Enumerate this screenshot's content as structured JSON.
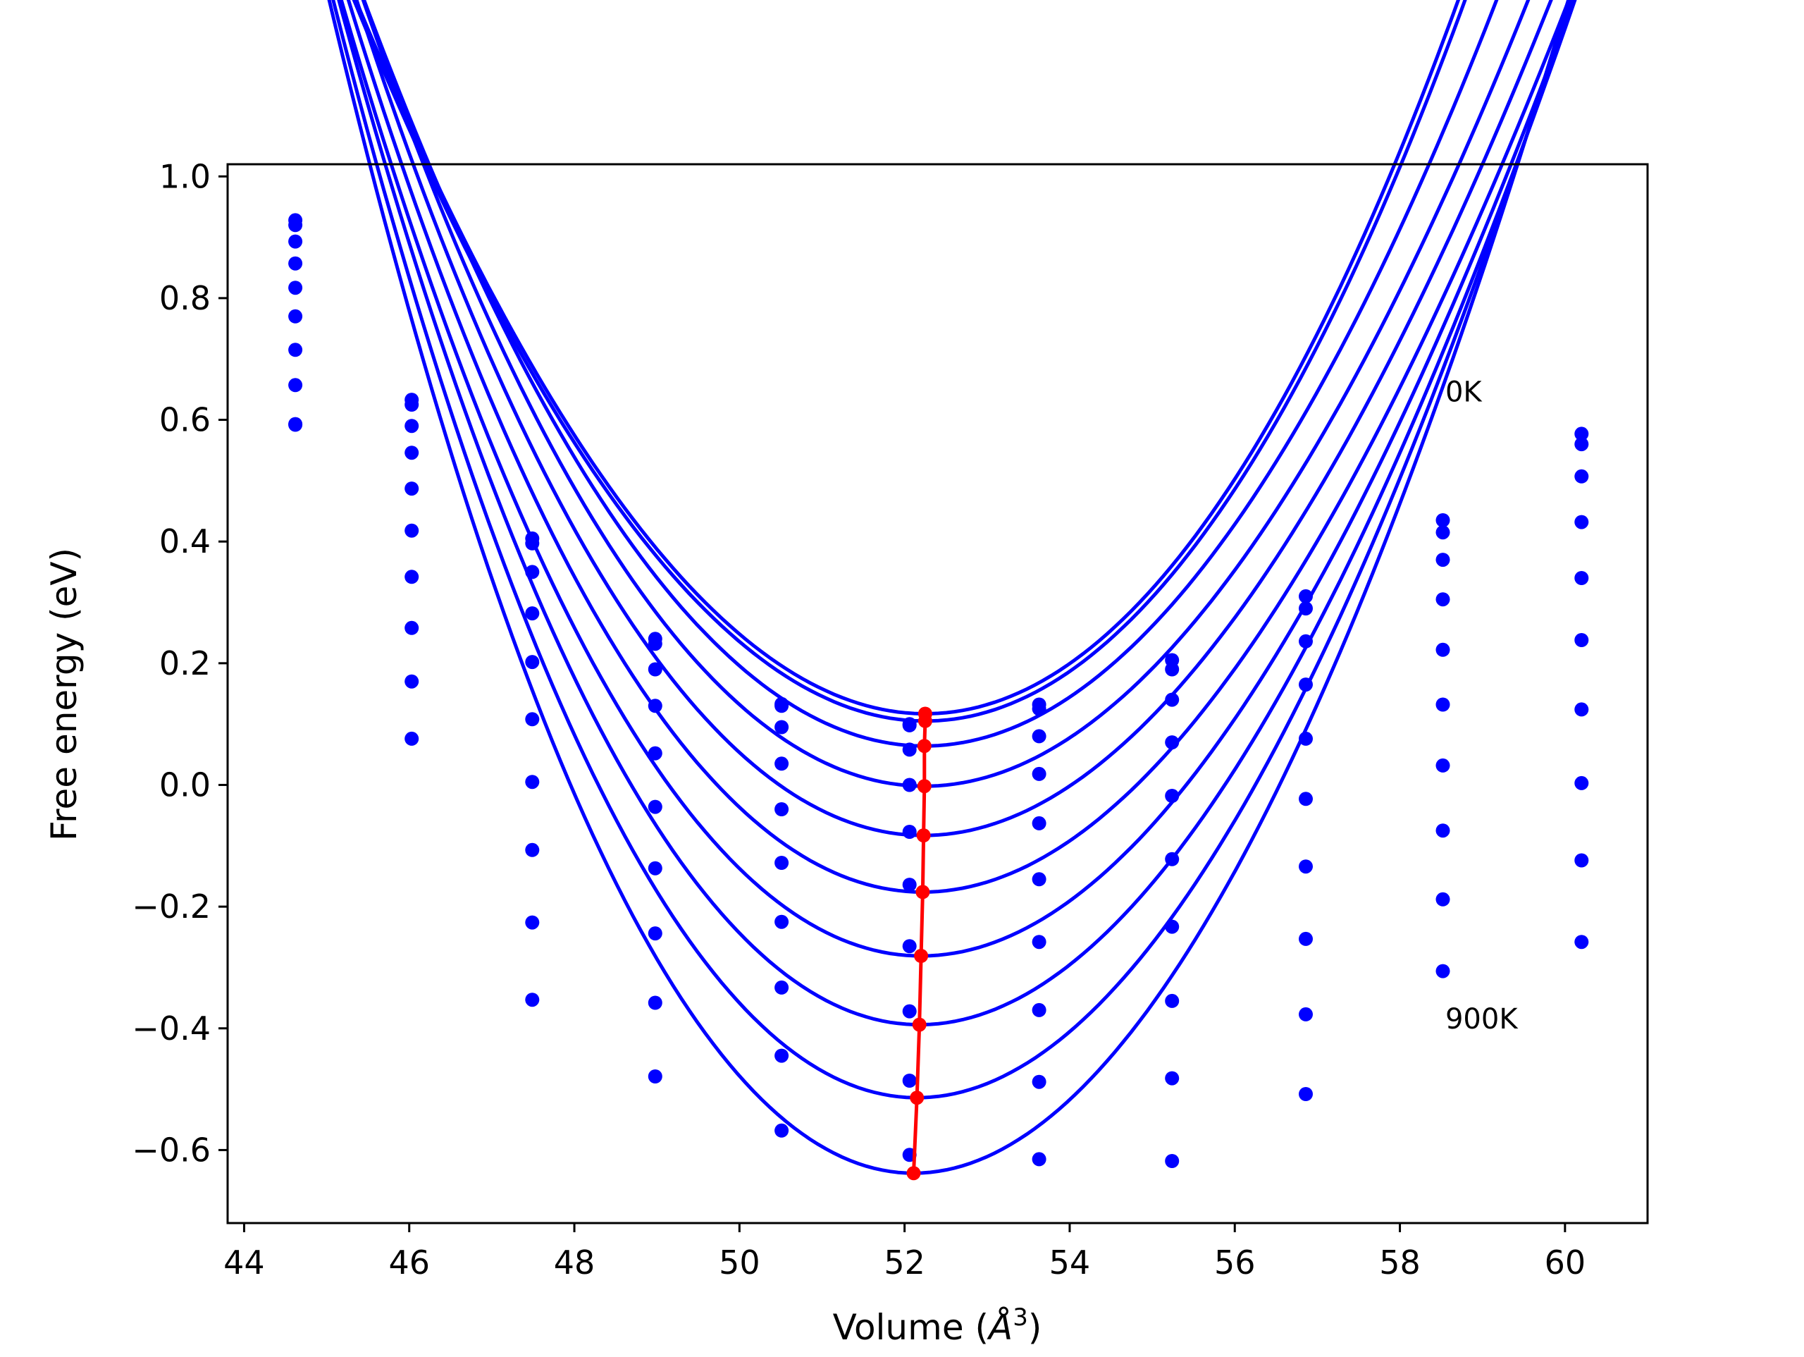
{
  "chart_data": {
    "type": "line",
    "title": "",
    "xlabel": "Volume",
    "xlabel_unit": "Å",
    "xlabel_exponent": "3",
    "ylabel": "Free energy (eV)",
    "xlim": [
      43.8,
      61.0
    ],
    "ylim": [
      -0.72,
      1.02
    ],
    "xticks": [
      44,
      46,
      48,
      50,
      52,
      54,
      56,
      58,
      60
    ],
    "xtick_labels": [
      "44",
      "46",
      "48",
      "50",
      "52",
      "54",
      "56",
      "58",
      "60"
    ],
    "yticks": [
      -0.6,
      -0.4,
      -0.2,
      0.0,
      0.2,
      0.4,
      0.6,
      0.8,
      1.0
    ],
    "ytick_labels": [
      "−0.6",
      "−0.4",
      "−0.2",
      "0.0",
      "0.2",
      "0.4",
      "0.6",
      "0.8",
      "1.0"
    ],
    "grid": false,
    "annotations": [
      {
        "text": "0K",
        "x": 58.55,
        "y": 0.63
      },
      {
        "text": "900K",
        "x": 58.55,
        "y": -0.4
      }
    ],
    "x": [
      44.62,
      46.03,
      47.49,
      48.98,
      50.51,
      52.06,
      53.63,
      55.24,
      56.86,
      58.52,
      60.2
    ],
    "series": [
      {
        "values": [
          0.928,
          0.633,
          0.405,
          0.24,
          0.133,
          0.1,
          0.132,
          0.205,
          0.31,
          0.435,
          0.577
        ]
      },
      {
        "values": [
          0.92,
          0.625,
          0.397,
          0.232,
          0.13,
          0.098,
          0.125,
          0.19,
          0.29,
          0.415,
          0.56
        ]
      },
      {
        "values": [
          0.893,
          0.59,
          0.35,
          0.19,
          0.095,
          0.058,
          0.08,
          0.14,
          0.236,
          0.37,
          0.507
        ]
      },
      {
        "values": [
          0.857,
          0.546,
          0.282,
          0.13,
          0.035,
          0.0,
          0.018,
          0.07,
          0.165,
          0.305,
          0.432
        ]
      },
      {
        "values": [
          0.817,
          0.487,
          0.202,
          0.052,
          -0.04,
          -0.077,
          -0.063,
          -0.018,
          0.076,
          0.222,
          0.34
        ]
      },
      {
        "values": [
          0.77,
          0.418,
          0.108,
          -0.036,
          -0.128,
          -0.164,
          -0.155,
          -0.122,
          -0.023,
          0.132,
          0.238
        ]
      },
      {
        "values": [
          0.715,
          0.342,
          0.005,
          -0.137,
          -0.225,
          -0.265,
          -0.258,
          -0.233,
          -0.134,
          0.032,
          0.124
        ]
      },
      {
        "values": [
          0.657,
          0.258,
          -0.107,
          -0.244,
          -0.333,
          -0.372,
          -0.37,
          -0.355,
          -0.253,
          -0.075,
          0.003
        ]
      },
      {
        "values": [
          0.592,
          0.17,
          -0.226,
          -0.358,
          -0.445,
          -0.486,
          -0.488,
          -0.482,
          -0.377,
          -0.188,
          -0.124
        ]
      },
      {
        "values": [
          0.593,
          0.076,
          -0.353,
          -0.479,
          -0.568,
          -0.608,
          -0.615,
          -0.618,
          -0.508,
          -0.306,
          -0.258
        ]
      }
    ],
    "fits": [
      {
        "x0": 52.25,
        "y0": 0.117,
        "a": 0.02645,
        "b": 0.00026
      },
      {
        "x0": 52.25,
        "y0": 0.105,
        "a": 0.02627,
        "b": 0.00022
      },
      {
        "x0": 52.24,
        "y0": 0.064,
        "a": 0.02607,
        "b": -8e-05
      },
      {
        "x0": 52.24,
        "y0": -0.002,
        "a": 0.02612,
        "b": -0.00027
      },
      {
        "x0": 52.23,
        "y0": -0.083,
        "a": 0.02657,
        "b": -0.00037
      },
      {
        "x0": 52.22,
        "y0": -0.176,
        "a": 0.0273,
        "b": -0.00043
      },
      {
        "x0": 52.2,
        "y0": -0.281,
        "a": 0.02869,
        "b": -0.00045
      },
      {
        "x0": 52.18,
        "y0": -0.394,
        "a": 0.0306,
        "b": -0.00049
      },
      {
        "x0": 52.15,
        "y0": -0.514,
        "a": 0.03261,
        "b": -0.00049
      },
      {
        "x0": 52.11,
        "y0": -0.638,
        "a": 0.03478,
        "b": -0.00052
      }
    ],
    "minima": {
      "x": [
        52.25,
        52.25,
        52.24,
        52.24,
        52.23,
        52.22,
        52.2,
        52.18,
        52.15,
        52.11
      ],
      "y": [
        0.117,
        0.105,
        0.064,
        -0.002,
        -0.083,
        -0.176,
        -0.281,
        -0.394,
        -0.514,
        -0.638
      ]
    },
    "colors": {
      "curves": "#0000ff",
      "minima": "#ff0000",
      "axes": "#000000"
    }
  }
}
